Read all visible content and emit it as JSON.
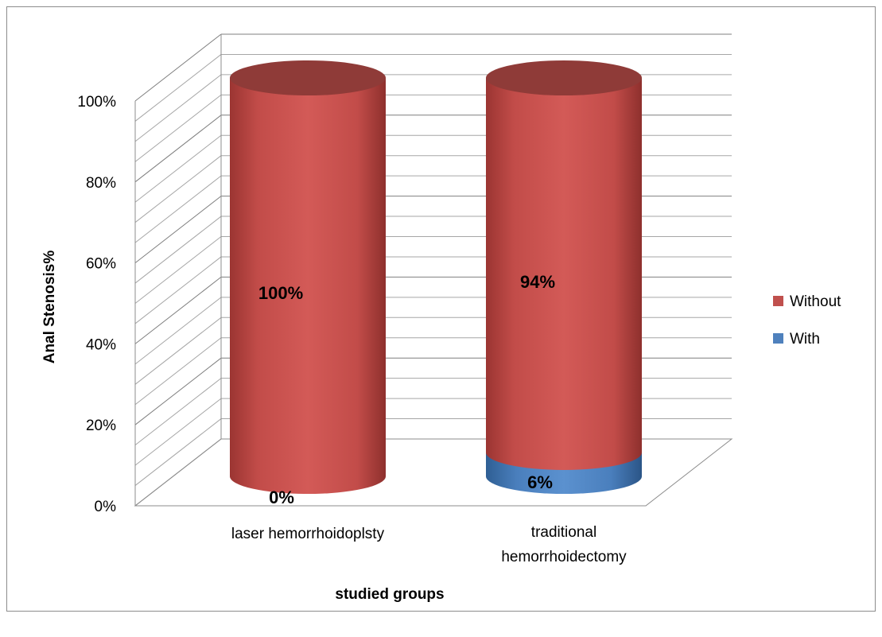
{
  "chart_data": {
    "type": "bar",
    "title": "",
    "xlabel": "studied groups",
    "ylabel": "Anal Stenosis%",
    "categories": [
      [
        "laser hemorrhoidoplsty"
      ],
      [
        "traditional",
        "hemorrhoidectomy"
      ]
    ],
    "series": [
      {
        "name": "With",
        "values": [
          0,
          6
        ],
        "labels": [
          "0%",
          "6%"
        ],
        "color": "#4f81bd"
      },
      {
        "name": "Without",
        "values": [
          100,
          94
        ],
        "labels": [
          "100%",
          "94%"
        ],
        "color": "#c0504d"
      }
    ],
    "stacked": true,
    "percent": true,
    "bar_shape": "cylinder",
    "three_d": true,
    "ylim": [
      0,
      100
    ],
    "yticks": [
      "0%",
      "20%",
      "40%",
      "60%",
      "80%",
      "100%"
    ],
    "grid": true,
    "legend": {
      "position": "right",
      "order": [
        "Without",
        "With"
      ]
    }
  }
}
